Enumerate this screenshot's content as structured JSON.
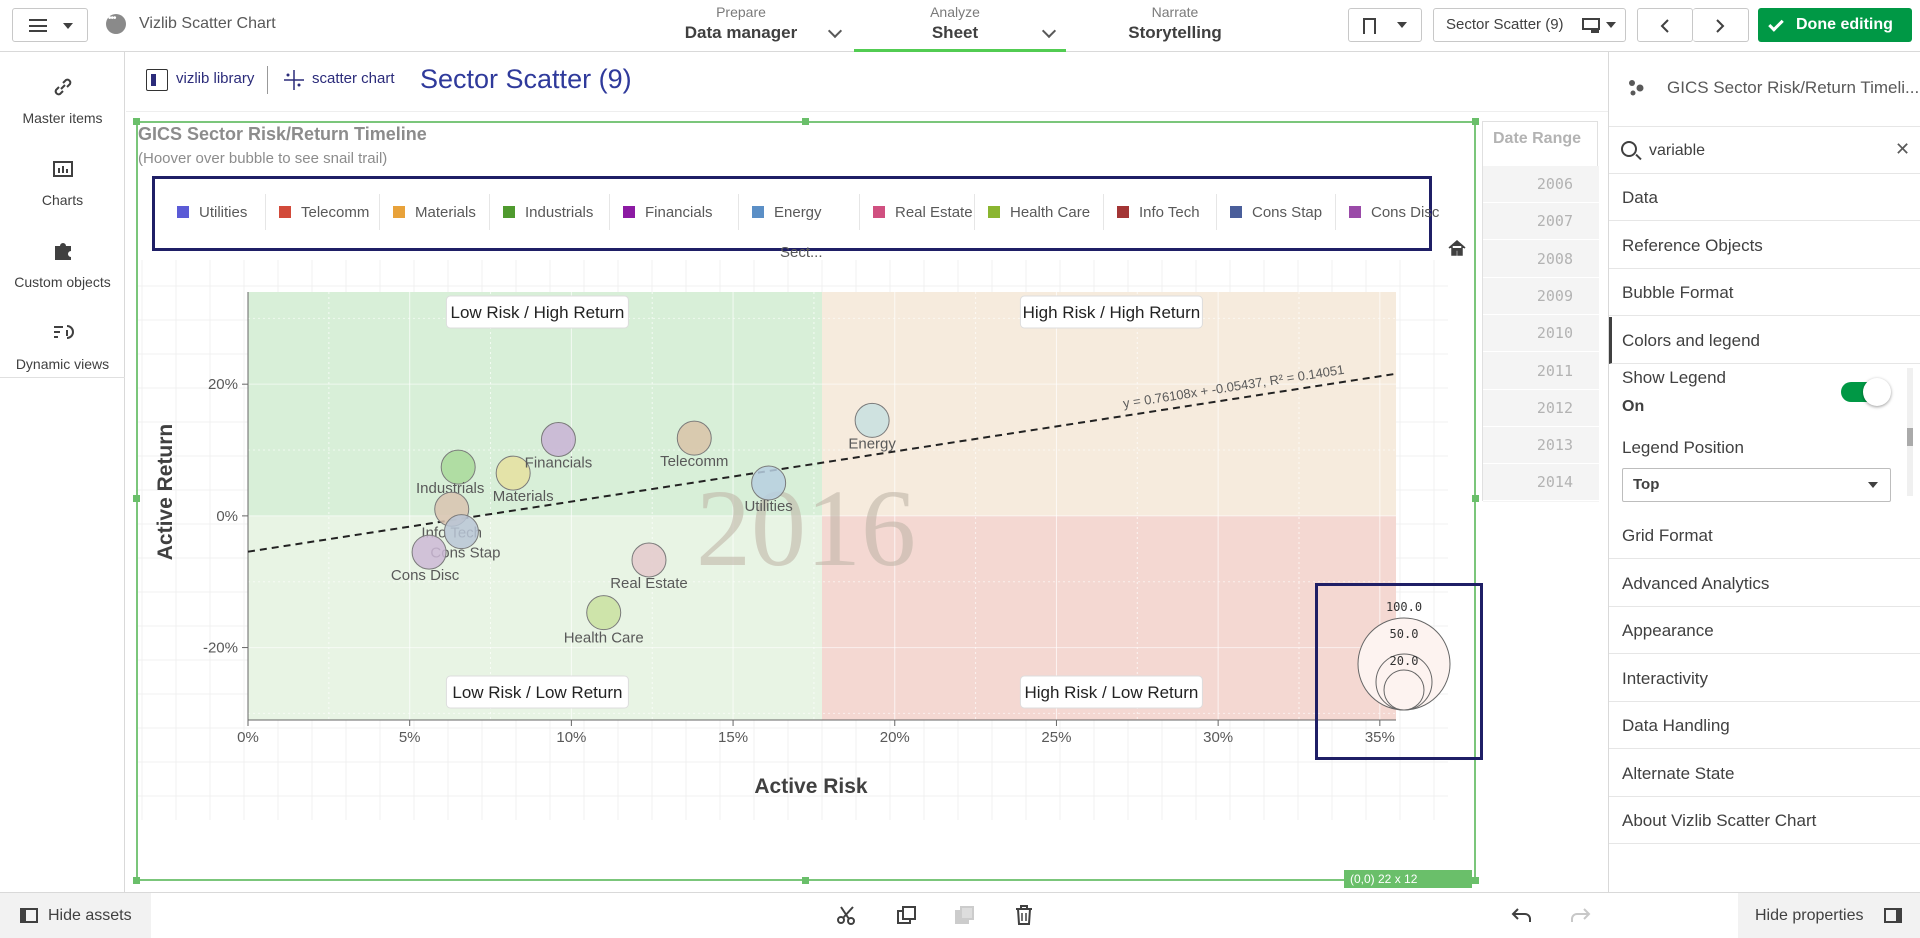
{
  "topbar": {
    "app_title": "Vizlib Scatter Chart",
    "prepare": {
      "sub": "Prepare",
      "main": "Data manager"
    },
    "analyze": {
      "sub": "Analyze",
      "main": "Sheet"
    },
    "narrate": {
      "sub": "Narrate",
      "main": "Storytelling"
    },
    "sheet_selector": "Sector Scatter (9)",
    "done_editing": "Done editing"
  },
  "left_panel": {
    "items": [
      {
        "label": "Master items",
        "icon": "link-icon"
      },
      {
        "label": "Charts",
        "icon": "bar-chart-icon"
      },
      {
        "label": "Custom objects",
        "icon": "puzzle-icon"
      },
      {
        "label": "Dynamic views",
        "icon": "dynamic-views-icon"
      }
    ]
  },
  "sheet_header": {
    "logo_text_1": "vizlib library",
    "logo_text_2": "scatter chart",
    "title": "Sector Scatter (9)"
  },
  "chart": {
    "title": "GICS Sector Risk/Return Timeline",
    "subtitle": "(Hoover over bubble to see snail trail)",
    "sect_label": "Sect...",
    "watermark_year": "2016",
    "quadrants": {
      "top_left": "Low Risk / High Return",
      "top_right": "High Risk / High Return",
      "bottom_left": "Low Risk / Low Return",
      "bottom_right": "High Risk / Low Return"
    },
    "size_legend": [
      "100.0",
      "50.0",
      "20.0"
    ],
    "size_badge": "(0,0)  22 x 12"
  },
  "chart_data": {
    "type": "scatter",
    "title": "GICS Sector Risk/Return Timeline",
    "subtitle": "(Hoover over bubble to see snail trail)",
    "xlabel": "Active Risk",
    "ylabel": "Active Return",
    "xlim": [
      0,
      35.5
    ],
    "ylim": [
      -31,
      34
    ],
    "x_ticks": [
      "0%",
      "5%",
      "10%",
      "15%",
      "20%",
      "25%",
      "30%",
      "35%"
    ],
    "y_ticks": [
      "-20%",
      "0%",
      "20%"
    ],
    "legend_position": "top",
    "grid": true,
    "trendline_label": "y = 0.76108x + -0.05437, R² = 0.14051",
    "trendline": {
      "slope": 0.76108,
      "intercept": -5.437
    },
    "legend": [
      {
        "name": "Utilities",
        "color": "#5b5bd6"
      },
      {
        "name": "Telecomm",
        "color": "#d24a3a"
      },
      {
        "name": "Materials",
        "color": "#e8a23a"
      },
      {
        "name": "Industrials",
        "color": "#4f9a2e"
      },
      {
        "name": "Financials",
        "color": "#8c1aa3"
      },
      {
        "name": "Energy",
        "color": "#5b8fc6"
      },
      {
        "name": "Real Estate",
        "color": "#d05080"
      },
      {
        "name": "Health Care",
        "color": "#8ab530"
      },
      {
        "name": "Info Tech",
        "color": "#a33535"
      },
      {
        "name": "Cons Stap",
        "color": "#4a5e9a"
      },
      {
        "name": "Cons Disc",
        "color": "#9a4aa8"
      }
    ],
    "points": [
      {
        "name": "Utilities",
        "x": 16.1,
        "y": 5.0,
        "fill": "#b7cfe0"
      },
      {
        "name": "Telecomm",
        "x": 13.8,
        "y": 11.8,
        "fill": "#d9c3a8"
      },
      {
        "name": "Materials",
        "x": 8.2,
        "y": 6.5,
        "fill": "#e6e0a0"
      },
      {
        "name": "Industrials",
        "x": 6.5,
        "y": 7.4,
        "fill": "#a9d99a"
      },
      {
        "name": "Financials",
        "x": 9.6,
        "y": 11.6,
        "fill": "#c9b3d6"
      },
      {
        "name": "Energy",
        "x": 19.3,
        "y": 14.5,
        "fill": "#c8e0e0"
      },
      {
        "name": "Real Estate",
        "x": 12.4,
        "y": -6.7,
        "fill": "#e4c9cc"
      },
      {
        "name": "Health Care",
        "x": 11.0,
        "y": -14.7,
        "fill": "#c9e0a0"
      },
      {
        "name": "Info Tech",
        "x": 6.3,
        "y": 1.0,
        "fill": "#d9c3b0"
      },
      {
        "name": "Cons Stap",
        "x": 6.6,
        "y": -2.4,
        "fill": "#b9c6d6"
      },
      {
        "name": "Cons Disc",
        "x": 5.6,
        "y": -5.5,
        "fill": "#cdb9d6"
      }
    ]
  },
  "date_range": {
    "title": "Date Range",
    "years": [
      "2006",
      "2007",
      "2008",
      "2009",
      "2010",
      "2011",
      "2012",
      "2013",
      "2014"
    ]
  },
  "right_panel": {
    "title": "GICS Sector Risk/Return Timeli...",
    "search_value": "variable",
    "sections_top": [
      "Data",
      "Reference Objects",
      "Bubble Format",
      "Colors and legend"
    ],
    "show_legend_label": "Show Legend",
    "show_legend_value": "On",
    "legend_position_label": "Legend Position",
    "legend_position_value": "Top",
    "sections_bottom": [
      "Grid Format",
      "Advanced Analytics",
      "Appearance",
      "Interactivity",
      "Data Handling",
      "Alternate State",
      "About Vizlib Scatter Chart"
    ]
  },
  "bottombar": {
    "hide_assets": "Hide assets",
    "hide_properties": "Hide properties"
  },
  "colors": {
    "accent_green": "#009845",
    "title_blue": "#2f3a9b",
    "legend_border": "#1f1f66"
  }
}
